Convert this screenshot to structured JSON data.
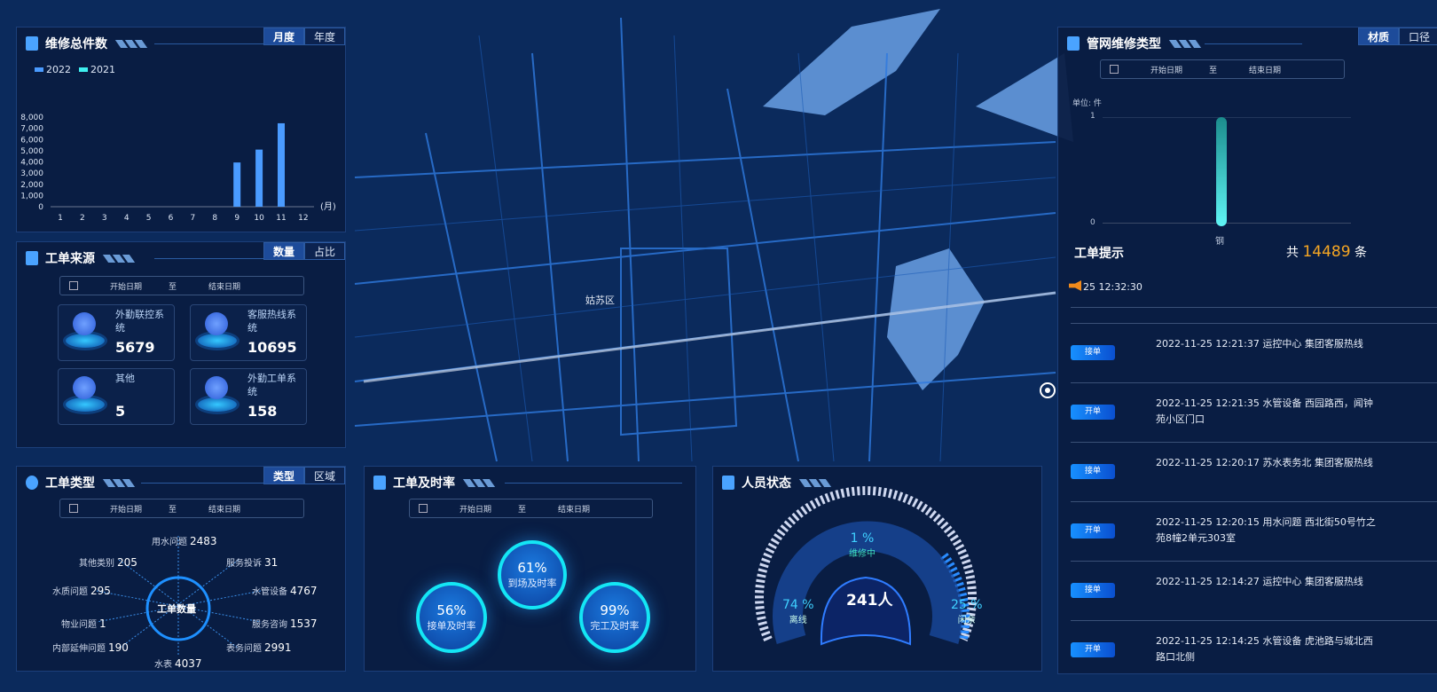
{
  "map": {
    "district_label": "姑苏区",
    "colors": {
      "bg": "#0b2a5c",
      "water": "#5b8ed0",
      "road": "#2f7ae0"
    }
  },
  "repair_total": {
    "title": "维修总件数",
    "tabs": [
      {
        "label": "月度",
        "active": true
      },
      {
        "label": "年度",
        "active": false
      }
    ],
    "chart_data": {
      "type": "bar",
      "legend": [
        "2022",
        "2021"
      ],
      "legend_colors": [
        "#4a9bff",
        "#3ff0f0"
      ],
      "categories": [
        "1",
        "2",
        "3",
        "4",
        "5",
        "6",
        "7",
        "8",
        "9",
        "10",
        "11",
        "12"
      ],
      "series": [
        {
          "name": "2022",
          "values": [
            0,
            0,
            0,
            0,
            0,
            0,
            0,
            0,
            3950,
            5100,
            7450,
            0
          ]
        },
        {
          "name": "2021",
          "values": [
            0,
            0,
            0,
            0,
            0,
            0,
            0,
            0,
            0,
            0,
            0,
            0
          ]
        }
      ],
      "yticks": [
        "0",
        "1,000",
        "2,000",
        "3,000",
        "4,000",
        "5,000",
        "6,000",
        "7,000",
        "8,000"
      ],
      "ylim": [
        0,
        8000
      ],
      "xunit": "(月)"
    }
  },
  "sources": {
    "title": "工单来源",
    "tabs": [
      {
        "label": "数量",
        "active": true
      },
      {
        "label": "占比",
        "active": false
      }
    ],
    "date": {
      "start": "开始日期",
      "to": "至",
      "end": "结束日期"
    },
    "items": [
      {
        "label": "外勤联控系统",
        "value": "5679"
      },
      {
        "label": "客服热线系统",
        "value": "10695"
      },
      {
        "label": "其他",
        "value": "5"
      },
      {
        "label": "外勤工单系统",
        "value": "158"
      }
    ]
  },
  "types": {
    "title": "工单类型",
    "tabs": [
      {
        "label": "类型",
        "active": true
      },
      {
        "label": "区域",
        "active": false
      }
    ],
    "date": {
      "start": "开始日期",
      "to": "至",
      "end": "结束日期"
    },
    "center": "工单数量",
    "items": [
      {
        "label": "用水问题",
        "value": "2483"
      },
      {
        "label": "其他类别",
        "value": "205"
      },
      {
        "label": "服务投诉",
        "value": "31"
      },
      {
        "label": "水质问题",
        "value": "295"
      },
      {
        "label": "水管设备",
        "value": "4767"
      },
      {
        "label": "物业问题",
        "value": "1"
      },
      {
        "label": "服务咨询",
        "value": "1537"
      },
      {
        "label": "内部延伸问题",
        "value": "190"
      },
      {
        "label": "表务问题",
        "value": "2991"
      },
      {
        "label": "水表",
        "value": "4037"
      }
    ]
  },
  "timely": {
    "title": "工单及时率",
    "date": {
      "start": "开始日期",
      "to": "至",
      "end": "结束日期"
    },
    "rings": [
      {
        "pct": "56%",
        "label": "接单及时率",
        "value": 56
      },
      {
        "pct": "61%",
        "label": "到场及时率",
        "value": 61
      },
      {
        "pct": "99%",
        "label": "完工及时率",
        "value": 99
      }
    ]
  },
  "staff": {
    "title": "人员状态",
    "total": "241人",
    "repairing": {
      "pct": "1 %",
      "label": "维修中"
    },
    "offline": {
      "pct": "74 %",
      "label": "离线"
    },
    "idle": {
      "pct": "25 %",
      "label": "闲余"
    }
  },
  "pipe": {
    "title": "管网维修类型",
    "tabs": [
      {
        "label": "材质",
        "active": true
      },
      {
        "label": "口径",
        "active": false
      }
    ],
    "date": {
      "start": "开始日期",
      "to": "至",
      "end": "结束日期"
    },
    "chart_data": {
      "type": "bar",
      "unit": "单位: 件",
      "categories": [
        "钢"
      ],
      "values": [
        1
      ],
      "yticks": [
        "0",
        "1"
      ],
      "ylim": [
        0,
        1
      ]
    }
  },
  "tips": {
    "title": "工单提示",
    "total_prefix": "共",
    "total": "14489",
    "total_suffix": "条",
    "latest": "25  12:32:30",
    "rows": [
      {
        "badge": "接单",
        "text": "2022-11-25  12:21:37 运控中心  集团客服热线"
      },
      {
        "badge": "开单",
        "text": "2022-11-25  12:21:35 水管设备  西园路西，闻钟苑小区门口"
      },
      {
        "badge": "接单",
        "text": "2022-11-25  12:20:17 苏水表务北  集团客服热线"
      },
      {
        "badge": "开单",
        "text": "2022-11-25  12:20:15 用水问题  西北街50号竹之苑8幢2单元303室"
      },
      {
        "badge": "接单",
        "text": "2022-11-25  12:14:27 运控中心  集团客服热线"
      },
      {
        "badge": "开单",
        "text": "2022-11-25  12:14:25 水管设备  虎池路与城北西路口北侧"
      }
    ]
  }
}
